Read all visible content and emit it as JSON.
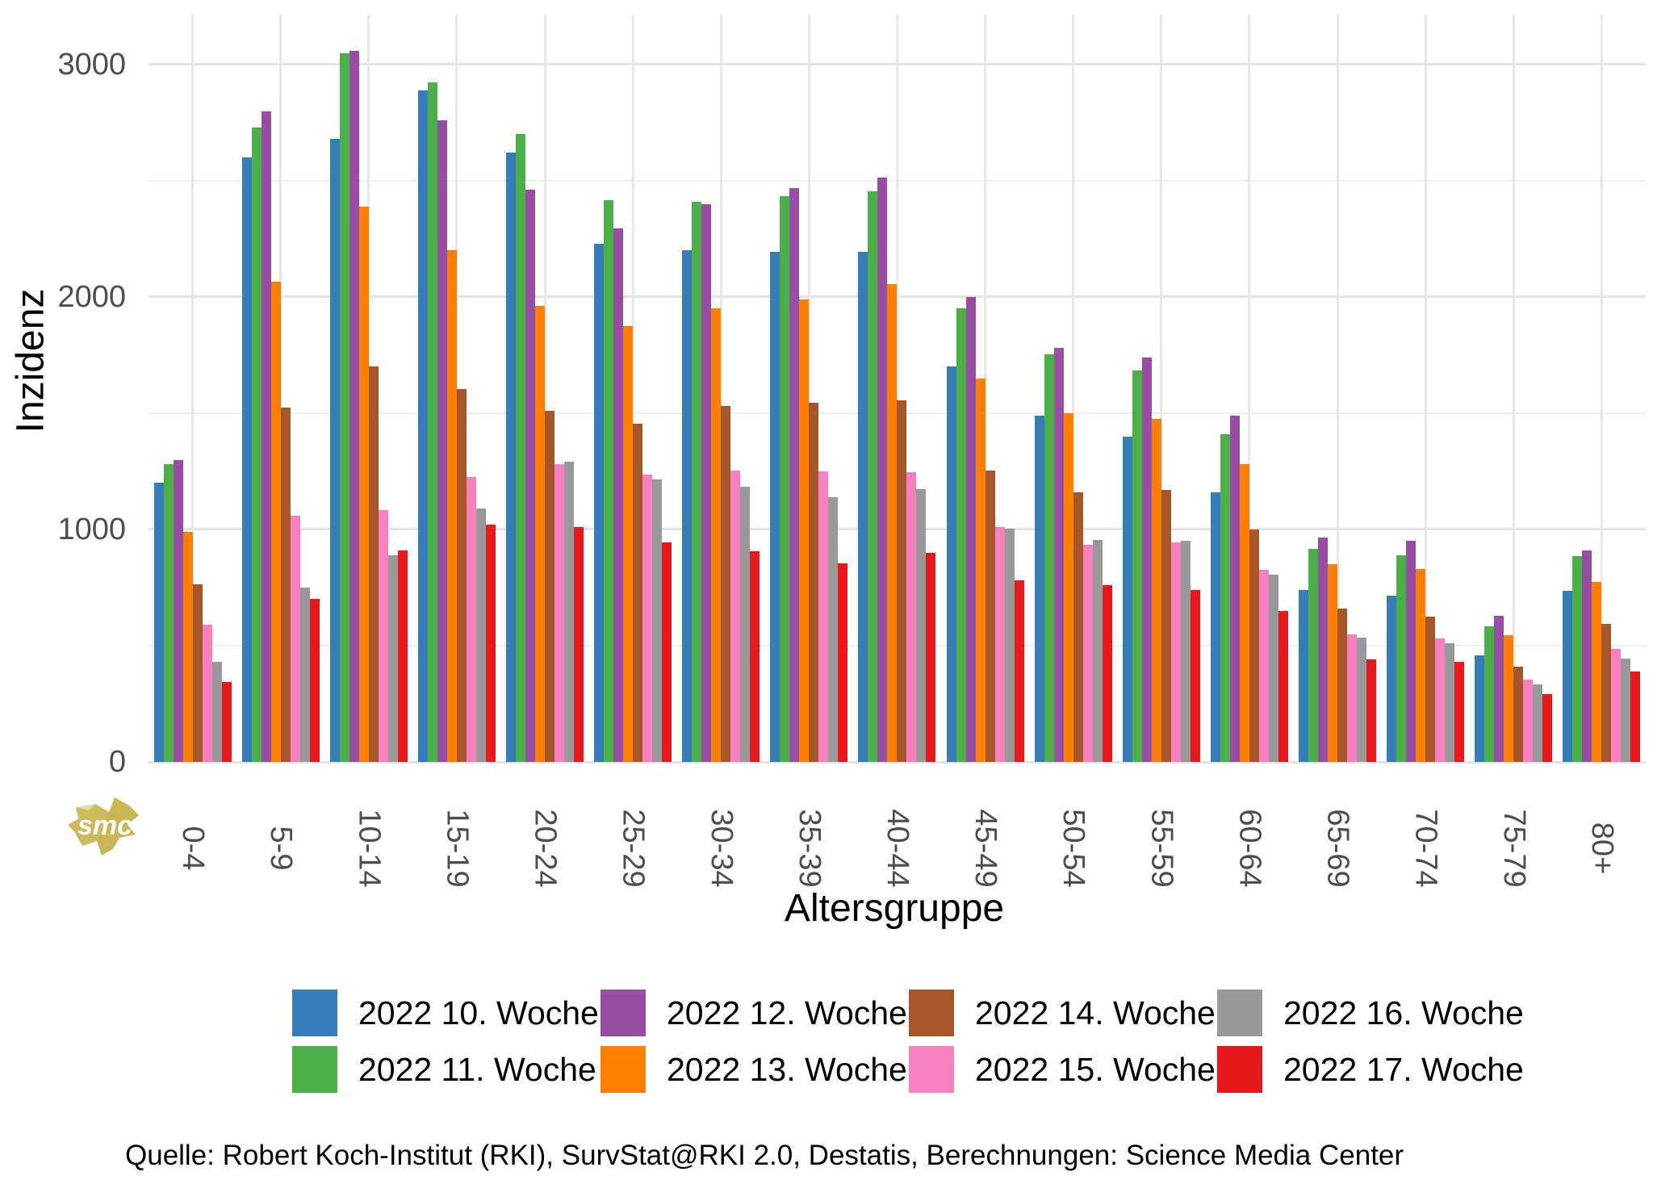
{
  "axes": {
    "y": {
      "label": "Inzidenz",
      "ticks": [
        {
          "text": "0",
          "value": 0
        },
        {
          "text": "1000",
          "value": 1000
        },
        {
          "text": "2000",
          "value": 2000
        },
        {
          "text": "3000",
          "value": 3000
        }
      ],
      "minor_values": [
        500,
        1500,
        2500
      ]
    },
    "x": {
      "label": "Altersgruppe"
    }
  },
  "chart_data": {
    "type": "bar",
    "title": "",
    "xlabel": "Altersgruppe",
    "ylabel": "Inzidenz",
    "ylim": [
      0,
      3215
    ],
    "yticks": [
      0,
      1000,
      2000,
      3000
    ],
    "grid": true,
    "legend_position": "bottom",
    "categories": [
      "0-4",
      "5-9",
      "10-14",
      "15-19",
      "20-24",
      "25-29",
      "30-34",
      "35-39",
      "40-44",
      "45-49",
      "50-54",
      "55-59",
      "60-64",
      "65-69",
      "70-74",
      "75-79",
      "80+"
    ],
    "series": [
      {
        "name": "2022 10. Woche",
        "color": "#377eb8",
        "values": [
          1200,
          2600,
          2680,
          2890,
          2620,
          2230,
          2200,
          2195,
          2195,
          1700,
          1490,
          1400,
          1160,
          740,
          715,
          460,
          735
        ]
      },
      {
        "name": "2022 11. Woche",
        "color": "#4daf4a",
        "values": [
          1280,
          2730,
          3050,
          2925,
          2700,
          2415,
          2410,
          2435,
          2455,
          1950,
          1755,
          1685,
          1410,
          915,
          890,
          585,
          885
        ]
      },
      {
        "name": "2022 12. Woche",
        "color": "#984ea3",
        "values": [
          1300,
          2800,
          3060,
          2760,
          2460,
          2295,
          2400,
          2470,
          2515,
          2000,
          1780,
          1740,
          1490,
          965,
          950,
          630,
          910
        ]
      },
      {
        "name": "2022 13. Woche",
        "color": "#ff7f00",
        "values": [
          990,
          2065,
          2390,
          2200,
          1960,
          1875,
          1950,
          1990,
          2055,
          1650,
          1500,
          1475,
          1280,
          850,
          830,
          545,
          775
        ]
      },
      {
        "name": "2022 14. Woche",
        "color": "#a65628",
        "values": [
          765,
          1525,
          1700,
          1605,
          1510,
          1455,
          1530,
          1545,
          1555,
          1255,
          1160,
          1170,
          1000,
          660,
          625,
          410,
          595
        ]
      },
      {
        "name": "2022 15. Woche",
        "color": "#f781bf",
        "values": [
          590,
          1060,
          1085,
          1225,
          1280,
          1235,
          1255,
          1250,
          1245,
          1010,
          935,
          945,
          825,
          550,
          530,
          355,
          485
        ]
      },
      {
        "name": "2022 16. Woche",
        "color": "#999999",
        "values": [
          430,
          750,
          890,
          1090,
          1290,
          1215,
          1185,
          1140,
          1175,
          1005,
          955,
          950,
          805,
          535,
          510,
          335,
          445
        ]
      },
      {
        "name": "2022 17. Woche",
        "color": "#e41a1c",
        "values": [
          345,
          700,
          910,
          1020,
          1010,
          945,
          905,
          855,
          900,
          780,
          760,
          740,
          650,
          440,
          430,
          290,
          390
        ]
      }
    ]
  },
  "legend": {
    "row_major_order": [
      "2022 10. Woche",
      "2022 12. Woche",
      "2022 14. Woche",
      "2022 16. Woche",
      "2022 11. Woche",
      "2022 13. Woche",
      "2022 15. Woche",
      "2022 17. Woche"
    ]
  },
  "footer": {
    "text": "Quelle: Robert Koch-Institut (RKI), SurvStat@RKI 2.0, Destatis, Berechnungen: Science Media Center"
  },
  "logo": {
    "text": "smc",
    "color": "#c9b654"
  }
}
